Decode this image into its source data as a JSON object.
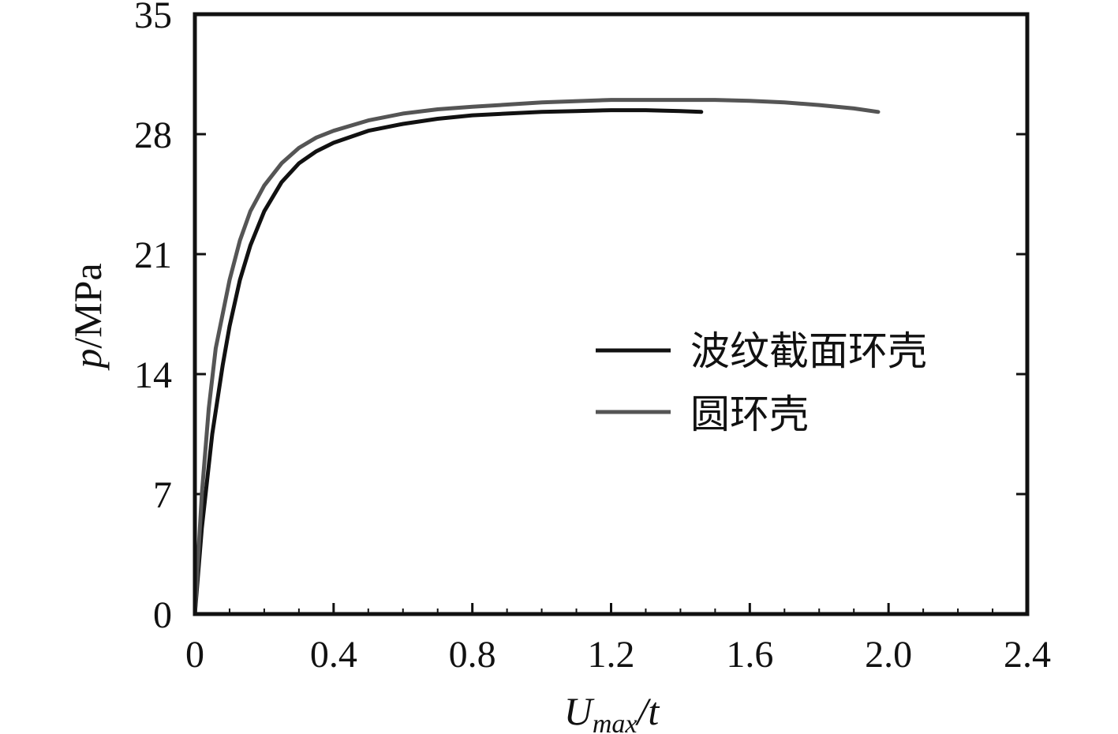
{
  "chart_data": {
    "type": "line",
    "xlabel": {
      "main": "U",
      "sub": "max",
      "suffix": "/t"
    },
    "ylabel": {
      "italic": "p",
      "rest": "/MPa"
    },
    "xlim": [
      0,
      2.4
    ],
    "ylim": [
      0,
      35
    ],
    "xticks": [
      "0",
      "0.4",
      "0.8",
      "1.2",
      "1.6",
      "2.0",
      "2.4"
    ],
    "yticks": [
      "0",
      "7",
      "14",
      "21",
      "28",
      "35"
    ],
    "grid": false,
    "legend_position": "center-right",
    "series": [
      {
        "name": "波纹截面环壳",
        "color": "#111111",
        "x": [
          0,
          0.02,
          0.05,
          0.08,
          0.1,
          0.13,
          0.16,
          0.2,
          0.25,
          0.3,
          0.35,
          0.4,
          0.5,
          0.6,
          0.7,
          0.8,
          0.9,
          1.0,
          1.1,
          1.2,
          1.3,
          1.4,
          1.46
        ],
        "y": [
          0,
          5,
          10.5,
          14.5,
          16.8,
          19.5,
          21.5,
          23.5,
          25.2,
          26.3,
          27.0,
          27.5,
          28.2,
          28.6,
          28.9,
          29.1,
          29.2,
          29.3,
          29.35,
          29.4,
          29.4,
          29.35,
          29.3
        ]
      },
      {
        "name": "圆环壳",
        "color": "#555555",
        "x": [
          0,
          0.02,
          0.04,
          0.06,
          0.08,
          0.1,
          0.13,
          0.16,
          0.2,
          0.25,
          0.3,
          0.35,
          0.4,
          0.5,
          0.6,
          0.7,
          0.8,
          1.0,
          1.2,
          1.4,
          1.5,
          1.6,
          1.7,
          1.8,
          1.9,
          1.97
        ],
        "y": [
          0,
          7,
          12,
          15.5,
          17.5,
          19.5,
          21.8,
          23.5,
          25.0,
          26.3,
          27.2,
          27.8,
          28.2,
          28.8,
          29.2,
          29.45,
          29.6,
          29.85,
          30.0,
          30.0,
          30.0,
          29.95,
          29.85,
          29.7,
          29.5,
          29.3
        ]
      }
    ]
  }
}
